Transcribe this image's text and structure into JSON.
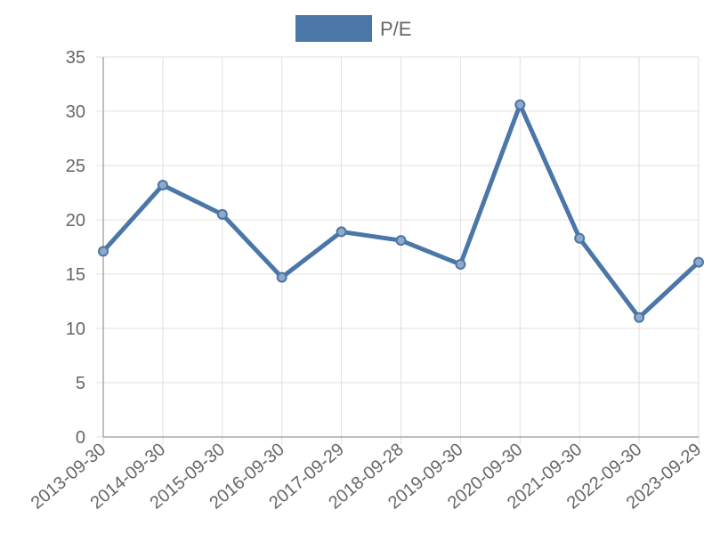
{
  "chart_data": {
    "type": "line",
    "title": "",
    "xlabel": "",
    "ylabel": "",
    "categories": [
      "2013-09-30",
      "2014-09-30",
      "2015-09-30",
      "2016-09-30",
      "2017-09-29",
      "2018-09-28",
      "2019-09-30",
      "2020-09-30",
      "2021-09-30",
      "2022-09-30",
      "2023-09-29"
    ],
    "series": [
      {
        "name": "P/E",
        "values": [
          17.1,
          23.2,
          20.5,
          14.7,
          18.9,
          18.1,
          15.9,
          30.6,
          18.3,
          11.0,
          16.1
        ],
        "color": "#4a76a8"
      }
    ],
    "ylim": [
      0,
      35
    ],
    "yticks": [
      0,
      5,
      10,
      15,
      20,
      25,
      30,
      35
    ],
    "grid": true,
    "legend_position": "top"
  }
}
